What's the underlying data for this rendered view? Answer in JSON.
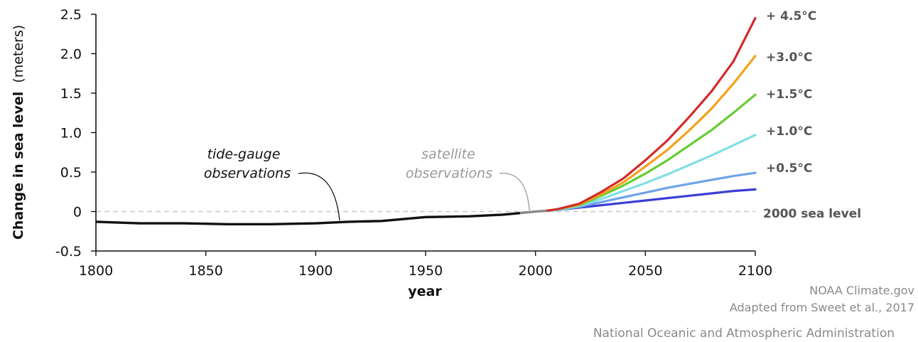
{
  "chart_data": {
    "type": "line",
    "ylabel_bold": "Change in sea level",
    "ylabel_unit": "(meters)",
    "xlabel": "year",
    "xlim": [
      1800,
      2100
    ],
    "ylim": [
      -0.5,
      2.5
    ],
    "x_ticks": [
      "1800",
      "1850",
      "1900",
      "1950",
      "2000",
      "2050",
      "2100"
    ],
    "y_ticks": [
      "2.5",
      "2.0",
      "1.5",
      "1.0",
      "0.5",
      "0",
      "-0.5"
    ],
    "reference_line": {
      "y": 0,
      "label": "2000 sea level"
    },
    "observed": [
      {
        "x": 1800,
        "y": -0.13
      },
      {
        "x": 1820,
        "y": -0.15
      },
      {
        "x": 1840,
        "y": -0.15
      },
      {
        "x": 1860,
        "y": -0.16
      },
      {
        "x": 1880,
        "y": -0.16
      },
      {
        "x": 1900,
        "y": -0.15
      },
      {
        "x": 1915,
        "y": -0.13
      },
      {
        "x": 1930,
        "y": -0.12
      },
      {
        "x": 1950,
        "y": -0.07
      },
      {
        "x": 1970,
        "y": -0.06
      },
      {
        "x": 1985,
        "y": -0.04
      },
      {
        "x": 1993,
        "y": -0.02
      }
    ],
    "satellite": [
      {
        "x": 1993,
        "y": -0.02
      },
      {
        "x": 2000,
        "y": 0.0
      },
      {
        "x": 2005,
        "y": 0.01
      }
    ],
    "x": [
      2005,
      2010,
      2020,
      2030,
      2040,
      2050,
      2060,
      2070,
      2080,
      2090,
      2100
    ],
    "series": [
      {
        "name": "+ 4.5°C",
        "color": "#d22b2b",
        "values": [
          0.01,
          0.03,
          0.1,
          0.25,
          0.42,
          0.65,
          0.9,
          1.2,
          1.52,
          1.9,
          2.45
        ]
      },
      {
        "name": "+3.0°C",
        "color": "#f3a21c",
        "values": [
          0.01,
          0.03,
          0.09,
          0.22,
          0.37,
          0.57,
          0.78,
          1.03,
          1.3,
          1.62,
          1.97
        ]
      },
      {
        "name": "+1.5°C",
        "color": "#66cc33",
        "values": [
          0.01,
          0.03,
          0.08,
          0.2,
          0.33,
          0.48,
          0.65,
          0.84,
          1.03,
          1.25,
          1.48
        ]
      },
      {
        "name": "+1.0°C",
        "color": "#7fdfe6",
        "values": [
          0.01,
          0.02,
          0.07,
          0.16,
          0.26,
          0.36,
          0.47,
          0.59,
          0.71,
          0.84,
          0.97
        ]
      },
      {
        "name": "+0.5°C",
        "color": "#6fa3ea",
        "values": [
          0.01,
          0.02,
          0.06,
          0.12,
          0.18,
          0.24,
          0.3,
          0.35,
          0.4,
          0.45,
          0.49
        ]
      },
      {
        "name": "",
        "color": "#3b3fd6",
        "values": [
          0.01,
          0.02,
          0.05,
          0.08,
          0.11,
          0.14,
          0.17,
          0.2,
          0.23,
          0.26,
          0.28
        ]
      }
    ],
    "annotations": [
      {
        "text_lines": [
          "tide-gauge",
          "observations"
        ],
        "color": "#111111"
      },
      {
        "text_lines": [
          "satellite",
          "observations"
        ],
        "color": "#9a9a9a"
      }
    ]
  },
  "credits": {
    "line1": "NOAA Climate.gov",
    "line2": "Adapted from Sweet et al., 2017",
    "line3": "National Oceanic and Atmospheric Administration"
  }
}
